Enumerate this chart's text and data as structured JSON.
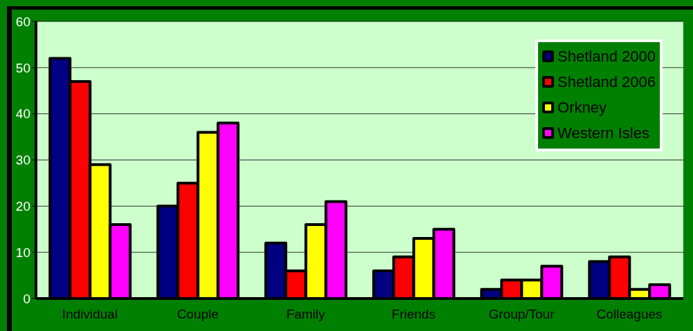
{
  "chart_data": {
    "type": "bar",
    "categories": [
      "Individual",
      "Couple",
      "Family",
      "Friends",
      "Group/Tour",
      "Colleagues"
    ],
    "series": [
      {
        "name": "Shetland 2000",
        "color": "#000080",
        "values": [
          52,
          20,
          12,
          6,
          2,
          8
        ]
      },
      {
        "name": "Shetland 2006",
        "color": "#ff0000",
        "values": [
          47,
          25,
          6,
          9,
          4,
          9
        ]
      },
      {
        "name": "Orkney",
        "color": "#ffff00",
        "values": [
          29,
          36,
          16,
          13,
          4,
          2
        ]
      },
      {
        "name": "Western Isles",
        "color": "#ff00ff",
        "values": [
          16,
          38,
          21,
          15,
          7,
          3
        ]
      }
    ],
    "ylim": [
      0,
      60
    ],
    "yticks": [
      0,
      10,
      20,
      30,
      40,
      50,
      60
    ],
    "grid": "y",
    "legend": "top right"
  }
}
